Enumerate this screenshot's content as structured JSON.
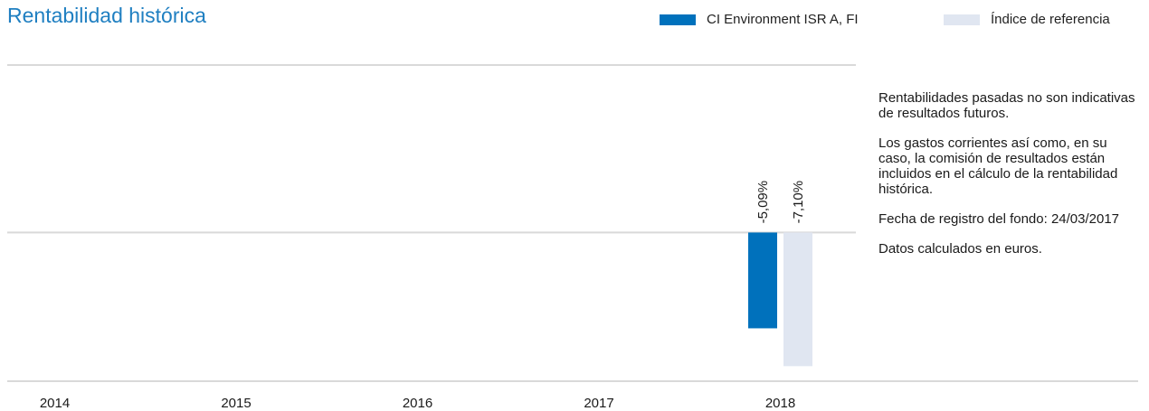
{
  "title": "Rentabilidad histórica",
  "legend": {
    "fund": "CI Environment ISR A, FI",
    "index": "Índice de referencia"
  },
  "notes": {
    "past_performance": "Rentabilidades pasadas no son indicativas de resultados futuros.",
    "charges": "Los gastos corrientes así como, en su caso, la comisión de resultados están incluidos en el cálculo de la rentabilidad histórica.",
    "registration": "Fecha de registro del fondo: 24/03/2017",
    "currency": "Datos calculados en euros."
  },
  "colors": {
    "fund": "#0071bc",
    "index": "#e0e6f1",
    "title": "#1f7fc1",
    "gridline": "#d9d9d9"
  },
  "chart_data": {
    "type": "bar",
    "categories": [
      "2014",
      "2015",
      "2016",
      "2017",
      "2018"
    ],
    "series": [
      {
        "name": "CI Environment ISR A, FI",
        "values": [
          null,
          null,
          null,
          null,
          -5.09
        ],
        "labels": [
          "",
          "",
          "",
          "",
          "-5,09%"
        ]
      },
      {
        "name": "Índice de referencia",
        "values": [
          null,
          null,
          null,
          null,
          -7.1
        ],
        "labels": [
          "",
          "",
          "",
          "",
          "-7,10%"
        ]
      }
    ],
    "ylim": [
      -7.9,
      8.9
    ],
    "legend_position": "top-right",
    "grid": true
  }
}
